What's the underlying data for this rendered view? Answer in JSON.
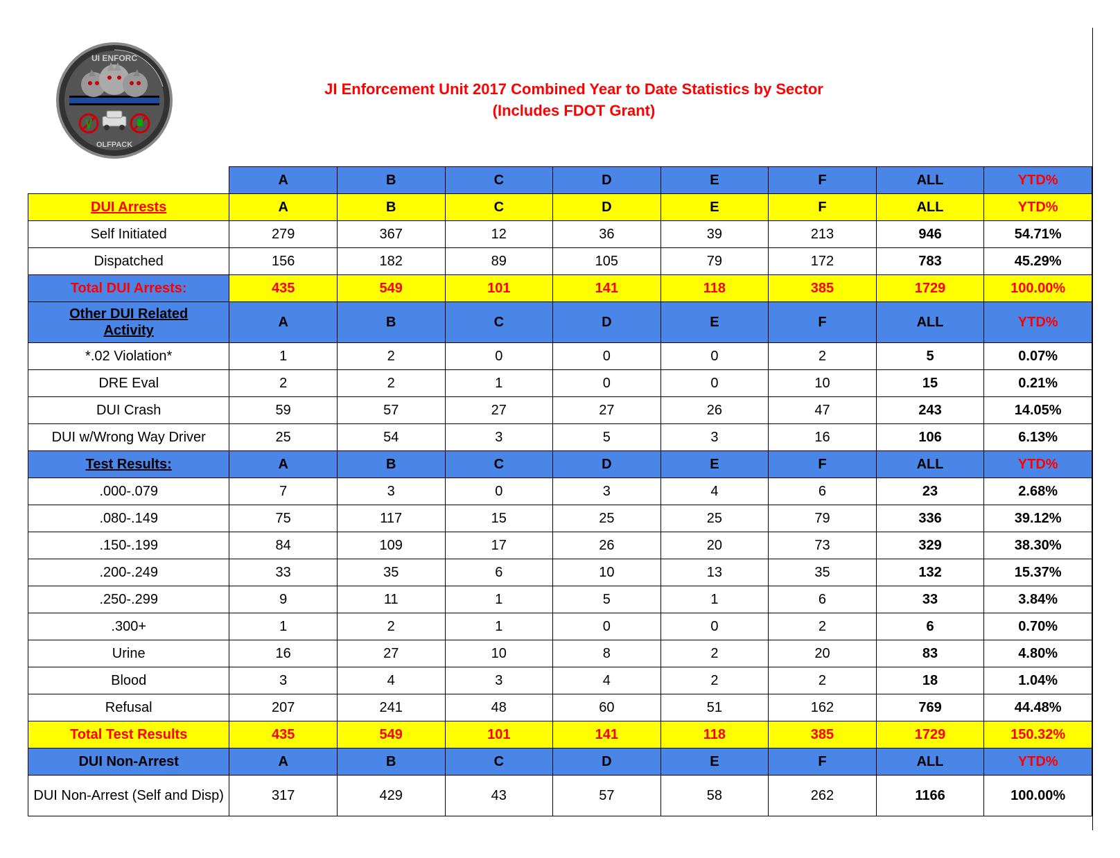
{
  "title": {
    "line1": "JI Enforcement Unit 2017 Combined Year to Date Statistics by Sector",
    "line2": "(Includes FDOT Grant)"
  },
  "colors": {
    "header_blue": "#4a86e8",
    "highlight_yellow": "#ffff00",
    "text_red": "#ff0000",
    "text_black": "#000000"
  },
  "columns": [
    "A",
    "B",
    "C",
    "D",
    "E",
    "F",
    "ALL",
    "YTD%"
  ],
  "sections": {
    "dui_arrests": {
      "header": "DUI Arrests",
      "rows": [
        {
          "label": "Self Initiated",
          "vals": [
            "279",
            "367",
            "12",
            "36",
            "39",
            "213",
            "946",
            "54.71%"
          ]
        },
        {
          "label": "Dispatched",
          "vals": [
            "156",
            "182",
            "89",
            "105",
            "79",
            "172",
            "783",
            "45.29%"
          ]
        }
      ],
      "total": {
        "label": "Total DUI Arrests:",
        "vals": [
          "435",
          "549",
          "101",
          "141",
          "118",
          "385",
          "1729",
          "100.00%"
        ]
      }
    },
    "other_activity": {
      "header": "Other DUI Related Activity",
      "rows": [
        {
          "label": "*.02 Violation*",
          "vals": [
            "1",
            "2",
            "0",
            "0",
            "0",
            "2",
            "5",
            "0.07%"
          ]
        },
        {
          "label": "DRE Eval",
          "vals": [
            "2",
            "2",
            "1",
            "0",
            "0",
            "10",
            "15",
            "0.21%"
          ]
        },
        {
          "label": "DUI Crash",
          "vals": [
            "59",
            "57",
            "27",
            "27",
            "26",
            "47",
            "243",
            "14.05%"
          ]
        },
        {
          "label": "DUI w/Wrong Way Driver",
          "vals": [
            "25",
            "54",
            "3",
            "5",
            "3",
            "16",
            "106",
            "6.13%"
          ]
        }
      ]
    },
    "test_results": {
      "header": "Test Results:",
      "rows": [
        {
          "label": ".000-.079",
          "vals": [
            "7",
            "3",
            "0",
            "3",
            "4",
            "6",
            "23",
            "2.68%"
          ]
        },
        {
          "label": ".080-.149",
          "vals": [
            "75",
            "117",
            "15",
            "25",
            "25",
            "79",
            "336",
            "39.12%"
          ]
        },
        {
          "label": ".150-.199",
          "vals": [
            "84",
            "109",
            "17",
            "26",
            "20",
            "73",
            "329",
            "38.30%"
          ]
        },
        {
          "label": ".200-.249",
          "vals": [
            "33",
            "35",
            "6",
            "10",
            "13",
            "35",
            "132",
            "15.37%"
          ]
        },
        {
          "label": ".250-.299",
          "vals": [
            "9",
            "11",
            "1",
            "5",
            "1",
            "6",
            "33",
            "3.84%"
          ]
        },
        {
          "label": ".300+",
          "vals": [
            "1",
            "2",
            "1",
            "0",
            "0",
            "2",
            "6",
            "0.70%"
          ]
        },
        {
          "label": "Urine",
          "vals": [
            "16",
            "27",
            "10",
            "8",
            "2",
            "20",
            "83",
            "4.80%"
          ]
        },
        {
          "label": "Blood",
          "vals": [
            "3",
            "4",
            "3",
            "4",
            "2",
            "2",
            "18",
            "1.04%"
          ]
        },
        {
          "label": "Refusal",
          "vals": [
            "207",
            "241",
            "48",
            "60",
            "51",
            "162",
            "769",
            "44.48%"
          ]
        }
      ],
      "total": {
        "label": "Total Test Results",
        "vals": [
          "435",
          "549",
          "101",
          "141",
          "118",
          "385",
          "1729",
          "150.32%"
        ]
      }
    },
    "non_arrest": {
      "header": "DUI Non-Arrest",
      "rows": [
        {
          "label": "DUI Non-Arrest (Self and Disp)",
          "vals": [
            "317",
            "429",
            "43",
            "57",
            "58",
            "262",
            "1166",
            "100.00%"
          ]
        }
      ]
    }
  }
}
